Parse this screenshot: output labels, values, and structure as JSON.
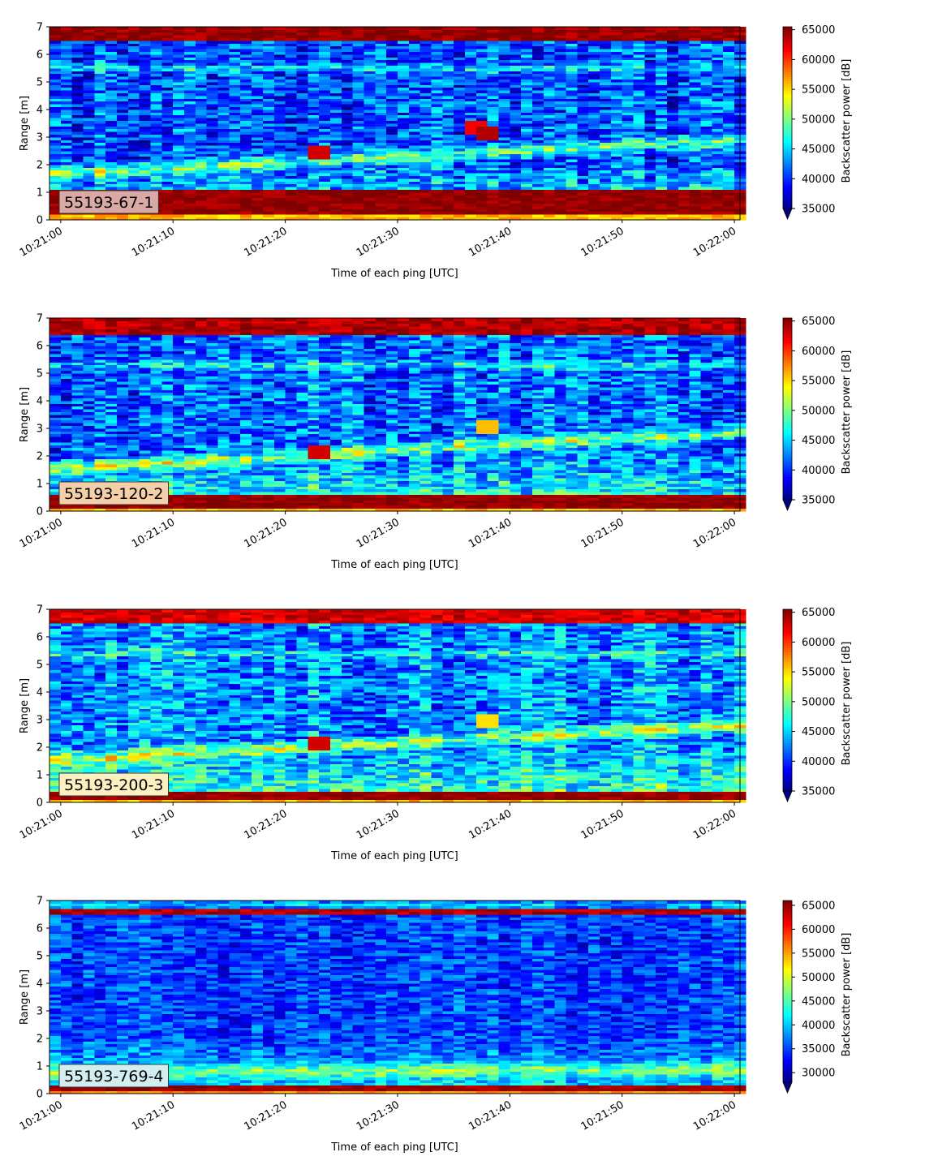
{
  "chart_data": [
    {
      "type": "heatmap",
      "instrument_label": "55193-67-1",
      "label_bg": "#d9aaa5",
      "xlabel": "Time of each ping [UTC]",
      "ylabel": "Range [m]",
      "x_ticks": [
        "10:21:00",
        "10:21:10",
        "10:21:20",
        "10:21:30",
        "10:21:40",
        "10:21:50",
        "10:22:00"
      ],
      "xlim": [
        "10:20:59",
        "10:22:00.5"
      ],
      "y_ticks": [
        0,
        1,
        2,
        3,
        4,
        5,
        6,
        7
      ],
      "ylim": [
        0,
        7
      ],
      "colormap": "jet",
      "colorbar_label": "Backscatter power [dB]",
      "colorbar_ticks": [
        35000,
        40000,
        45000,
        50000,
        55000,
        60000,
        65000
      ],
      "clim": [
        35000,
        65500
      ],
      "colorbar_extend": "min",
      "features": {
        "bottom_band": [
          0.2,
          1.1
        ],
        "bottom_band_level": 65000,
        "top_band": [
          6.5,
          7.0
        ],
        "top_band_level": 65000,
        "rising_layer_start": 1.7,
        "rising_layer_end": 2.9,
        "mid_band_range": 5.5,
        "background_mean": 41000,
        "noise": 4500,
        "hotspots": [
          {
            "time": "10:21:23",
            "range": 2.5,
            "value": 63000
          },
          {
            "time": "10:21:37",
            "range": 3.35,
            "value": 62000
          },
          {
            "time": "10:21:38",
            "range": 3.2,
            "value": 64000
          }
        ]
      }
    },
    {
      "type": "heatmap",
      "instrument_label": "55193-120-2",
      "label_bg": "#f5cfa8",
      "xlabel": "Time of each ping [UTC]",
      "ylabel": "Range [m]",
      "x_ticks": [
        "10:21:00",
        "10:21:10",
        "10:21:20",
        "10:21:30",
        "10:21:40",
        "10:21:50",
        "10:22:00"
      ],
      "xlim": [
        "10:20:59",
        "10:22:00.5"
      ],
      "y_ticks": [
        0,
        1,
        2,
        3,
        4,
        5,
        6,
        7
      ],
      "ylim": [
        0,
        7
      ],
      "colormap": "jet",
      "colorbar_label": "Backscatter power [dB]",
      "colorbar_ticks": [
        35000,
        40000,
        45000,
        50000,
        55000,
        60000,
        65000
      ],
      "clim": [
        35000,
        65500
      ],
      "colorbar_extend": "min",
      "features": {
        "bottom_band": [
          0.1,
          0.55
        ],
        "bottom_band_level": 65000,
        "top_band": [
          6.4,
          7.0
        ],
        "top_band_level": 64000,
        "rising_layer_start": 1.55,
        "rising_layer_end": 2.9,
        "mid_band_range": 5.3,
        "background_mean": 42000,
        "noise": 4500,
        "hotspots": [
          {
            "time": "10:21:23",
            "range": 2.2,
            "value": 63000
          },
          {
            "time": "10:21:38",
            "range": 3.05,
            "value": 56000
          }
        ]
      }
    },
    {
      "type": "heatmap",
      "instrument_label": "55193-200-3",
      "label_bg": "#fdf0c0",
      "xlabel": "Time of each ping [UTC]",
      "ylabel": "Range [m]",
      "x_ticks": [
        "10:21:00",
        "10:21:10",
        "10:21:20",
        "10:21:30",
        "10:21:40",
        "10:21:50",
        "10:22:00"
      ],
      "xlim": [
        "10:20:59",
        "10:22:00.5"
      ],
      "y_ticks": [
        0,
        1,
        2,
        3,
        4,
        5,
        6,
        7
      ],
      "ylim": [
        0,
        7
      ],
      "colormap": "jet",
      "colorbar_label": "Backscatter power [dB]",
      "colorbar_ticks": [
        35000,
        40000,
        45000,
        50000,
        55000,
        60000,
        65000
      ],
      "clim": [
        35000,
        65500
      ],
      "colorbar_extend": "min",
      "features": {
        "bottom_band": [
          0.1,
          0.4
        ],
        "bottom_band_level": 65000,
        "top_band": [
          6.5,
          7.0
        ],
        "top_band_level": 63000,
        "rising_layer_start": 1.55,
        "rising_layer_end": 2.8,
        "mid_band_range": 5.4,
        "background_mean": 43000,
        "noise": 4500,
        "hotspots": [
          {
            "time": "10:21:23",
            "range": 2.2,
            "value": 63000
          },
          {
            "time": "10:21:38",
            "range": 3.0,
            "value": 55000
          }
        ]
      }
    },
    {
      "type": "heatmap",
      "instrument_label": "55193-769-4",
      "label_bg": "#d3eef0",
      "xlabel": "Time of each ping [UTC]",
      "ylabel": "Range [m]",
      "x_ticks": [
        "10:21:00",
        "10:21:10",
        "10:21:20",
        "10:21:30",
        "10:21:40",
        "10:21:50",
        "10:22:00"
      ],
      "xlim": [
        "10:20:59",
        "10:22:00.5"
      ],
      "y_ticks": [
        0,
        1,
        2,
        3,
        4,
        5,
        6,
        7
      ],
      "ylim": [
        0,
        7
      ],
      "colormap": "jet",
      "colorbar_label": "Backscatter power [dB]",
      "colorbar_ticks": [
        30000,
        35000,
        40000,
        45000,
        50000,
        55000,
        60000,
        65000
      ],
      "clim": [
        28000,
        66000
      ],
      "colorbar_extend": "min",
      "features": {
        "bottom_band": [
          0.15,
          0.35
        ],
        "bottom_band_level": 65000,
        "top_band": [
          6.45,
          6.7
        ],
        "top_band_level": 64000,
        "rising_layer_start": 0.8,
        "rising_layer_end": 0.9,
        "mid_band_range": 6.85,
        "background_mean": 35000,
        "noise": 4000,
        "hotspots": []
      }
    }
  ]
}
